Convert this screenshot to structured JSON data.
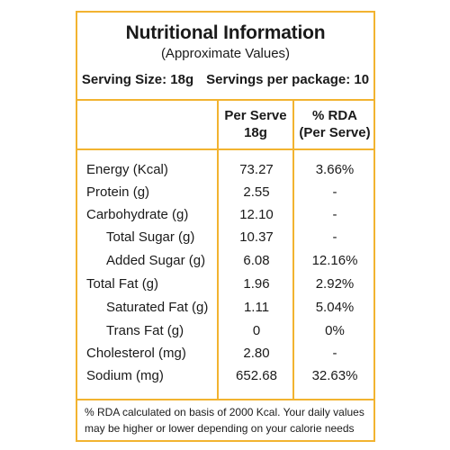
{
  "title": "Nutritional Information",
  "subtitle": "(Approximate Values)",
  "serving_size": "Serving Size: 18g",
  "servings_per_package": "Servings per package: 10",
  "columns": {
    "per_serve_line1": "Per Serve",
    "per_serve_line2": "18g",
    "rda_line1": "% RDA",
    "rda_line2": "(Per Serve)"
  },
  "rows": [
    {
      "label": "Energy (Kcal)",
      "per_serve": "73.27",
      "rda": "3.66%",
      "indent": false
    },
    {
      "label": "Protein (g)",
      "per_serve": "2.55",
      "rda": "-",
      "indent": false
    },
    {
      "label": "Carbohydrate (g)",
      "per_serve": "12.10",
      "rda": "-",
      "indent": false
    },
    {
      "label": "Total Sugar (g)",
      "per_serve": "10.37",
      "rda": "-",
      "indent": true
    },
    {
      "label": "Added Sugar (g)",
      "per_serve": "6.08",
      "rda": "12.16%",
      "indent": true
    },
    {
      "label": "Total Fat (g)",
      "per_serve": "1.96",
      "rda": "2.92%",
      "indent": false
    },
    {
      "label": "Saturated Fat (g)",
      "per_serve": "1.11",
      "rda": "5.04%",
      "indent": true
    },
    {
      "label": "Trans Fat (g)",
      "per_serve": "0",
      "rda": "0%",
      "indent": true
    },
    {
      "label": "Cholesterol (mg)",
      "per_serve": "2.80",
      "rda": "-",
      "indent": false
    },
    {
      "label": "Sodium (mg)",
      "per_serve": "652.68",
      "rda": "32.63%",
      "indent": false
    }
  ],
  "footnote": "% RDA calculated on basis of 2000 Kcal. Your daily values may be higher or lower depending on your calorie needs",
  "colors": {
    "border": "#f2b330"
  }
}
